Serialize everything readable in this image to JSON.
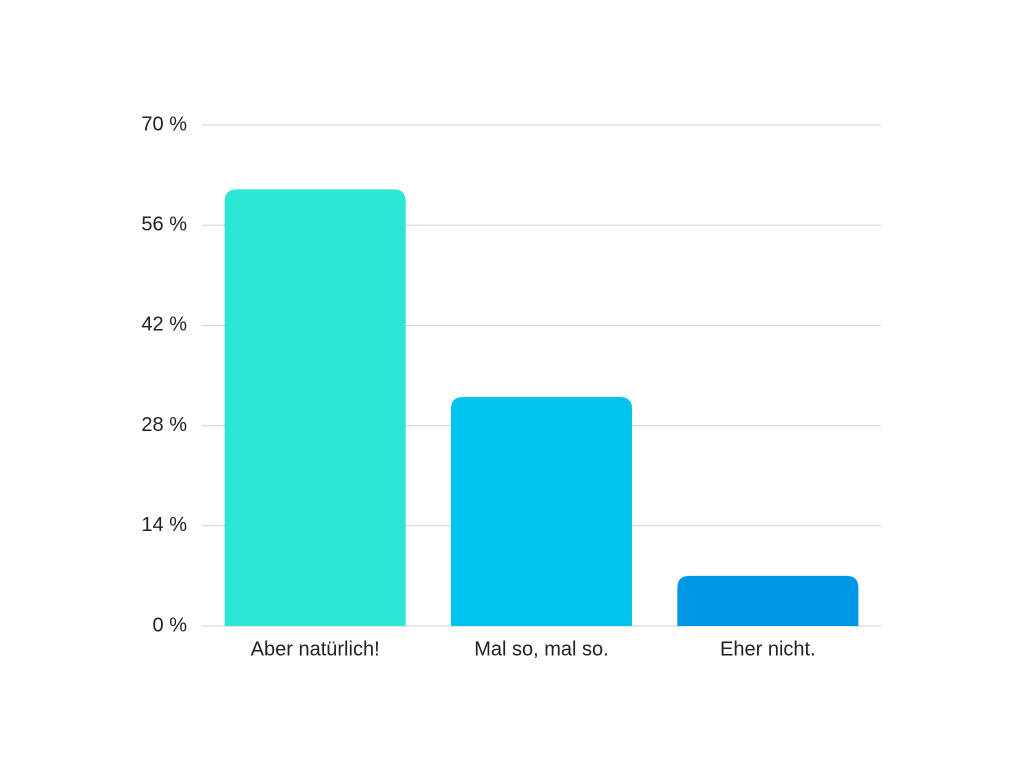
{
  "chart_data": {
    "type": "bar",
    "categories": [
      "Aber natürlich!",
      "Mal so, mal so.",
      "Eher nicht."
    ],
    "values": [
      61,
      32,
      7
    ],
    "colors": [
      "#2de6d6",
      "#00c3ee",
      "#0096e8"
    ],
    "ylim": [
      0,
      70
    ],
    "yticks": [
      {
        "value": 0,
        "label": "0 %"
      },
      {
        "value": 14,
        "label": "14 %"
      },
      {
        "value": 28,
        "label": "28 %"
      },
      {
        "value": 42,
        "label": "42 %"
      },
      {
        "value": 56,
        "label": "56 %"
      },
      {
        "value": 70,
        "label": "70 %"
      }
    ],
    "grid": true
  }
}
